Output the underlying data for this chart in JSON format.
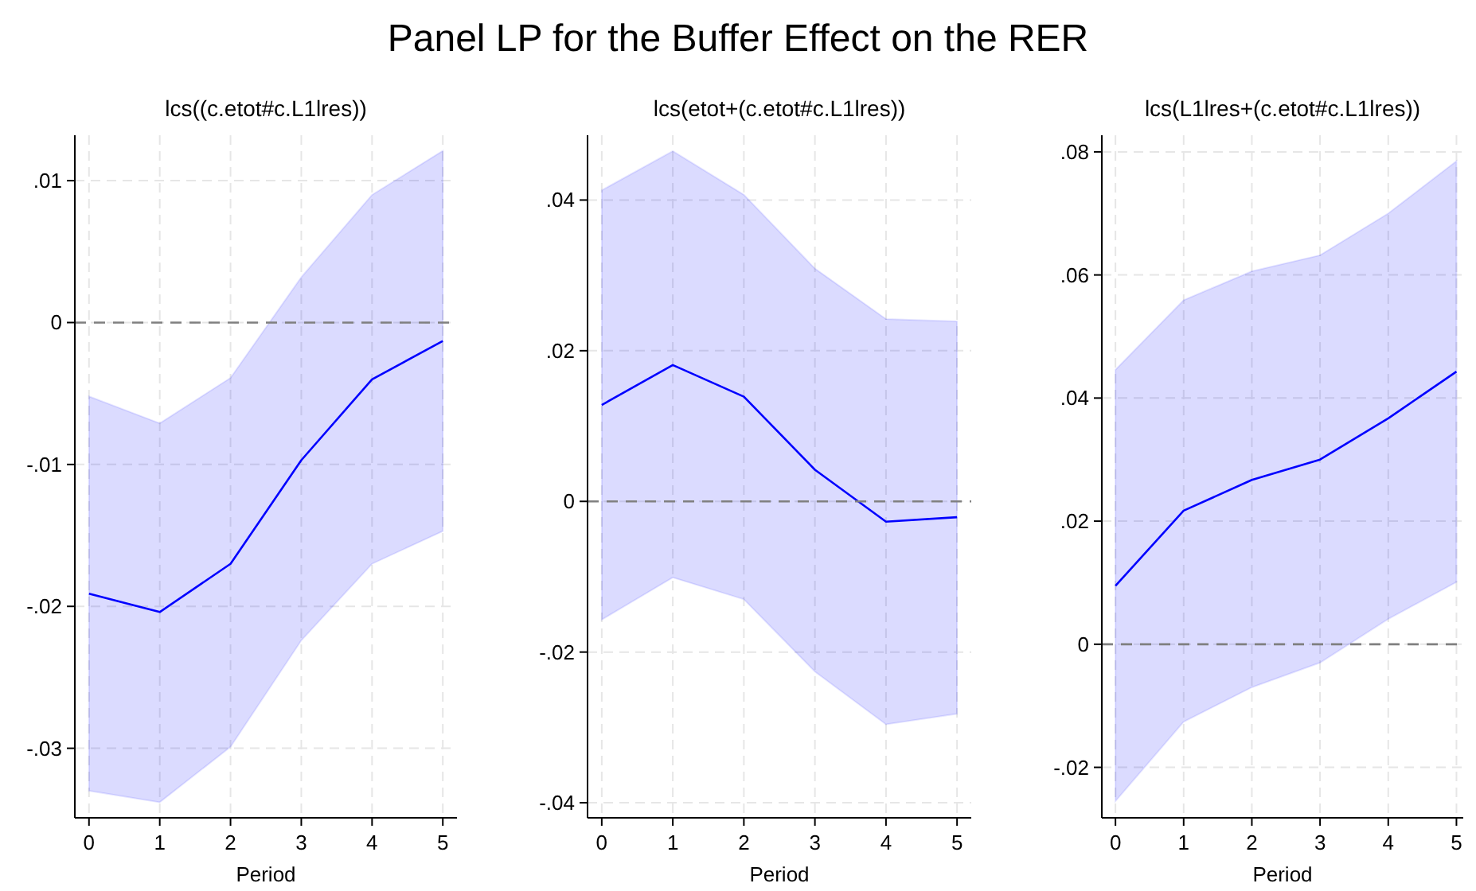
{
  "chart_data": [
    {
      "type": "other",
      "title": "Panel LP for the Buffer Effect on the RER"
    },
    {
      "type": "line",
      "title": "lcs((c.etot#c.L1lres))",
      "xlabel": "Period",
      "x": [
        0,
        1,
        2,
        3,
        4,
        5
      ],
      "xlim": [
        -0.2,
        5.2
      ],
      "xticks": [
        0,
        1,
        2,
        3,
        4,
        5
      ],
      "ylim": [
        -0.0349,
        0.0132
      ],
      "yticks": [
        {
          "value": -0.03,
          "label": "-.03"
        },
        {
          "value": -0.02,
          "label": "-.02"
        },
        {
          "value": -0.01,
          "label": "-.01"
        },
        {
          "value": 0,
          "label": "0"
        },
        {
          "value": 0.01,
          "label": ".01"
        }
      ],
      "grid": true,
      "marker": "none",
      "line_style": "solid",
      "ref_lines": [
        {
          "axis": "y",
          "value": 0,
          "color": "#808080",
          "line_style": "dashed"
        }
      ],
      "series": [
        {
          "color": "#0000ff",
          "values": [
            -0.0191,
            -0.0204,
            -0.017,
            -0.0097,
            -0.004,
            -0.0013
          ],
          "lower": [
            -0.033,
            -0.0338,
            -0.0299,
            -0.0224,
            -0.017,
            -0.0147
          ],
          "upper": [
            -0.0052,
            -0.0071,
            -0.0039,
            0.0032,
            0.009,
            0.0121
          ]
        }
      ]
    },
    {
      "type": "line",
      "title": "lcs(etot+(c.etot#c.L1lres))",
      "xlabel": "Period",
      "x": [
        0,
        1,
        2,
        3,
        4,
        5
      ],
      "xlim": [
        -0.2,
        5.2
      ],
      "xticks": [
        0,
        1,
        2,
        3,
        4,
        5
      ],
      "ylim": [
        -0.042,
        0.0486
      ],
      "yticks": [
        {
          "value": -0.04,
          "label": "-.04"
        },
        {
          "value": -0.02,
          "label": "-.02"
        },
        {
          "value": 0,
          "label": "0"
        },
        {
          "value": 0.02,
          "label": ".02"
        },
        {
          "value": 0.04,
          "label": ".04"
        }
      ],
      "grid": true,
      "marker": "none",
      "line_style": "solid",
      "ref_lines": [
        {
          "axis": "y",
          "value": 0,
          "color": "#808080",
          "line_style": "dashed"
        }
      ],
      "series": [
        {
          "color": "#0000ff",
          "values": [
            0.0128,
            0.0181,
            0.0139,
            0.0042,
            -0.0027,
            -0.0021
          ],
          "lower": [
            -0.0157,
            -0.0101,
            -0.013,
            -0.0226,
            -0.0296,
            -0.0282
          ],
          "upper": [
            0.0413,
            0.0465,
            0.0407,
            0.0309,
            0.0242,
            0.0239
          ]
        }
      ]
    },
    {
      "type": "line",
      "title": "lcs(L1lres+(c.etot#c.L1lres))",
      "xlabel": "Period",
      "x": [
        0,
        1,
        2,
        3,
        4,
        5
      ],
      "xlim": [
        -0.2,
        5.1
      ],
      "xticks": [
        0,
        1,
        2,
        3,
        4,
        5
      ],
      "ylim": [
        -0.0282,
        0.0827
      ],
      "yticks": [
        {
          "value": -0.02,
          "label": "-.02"
        },
        {
          "value": 0,
          "label": "0"
        },
        {
          "value": 0.02,
          "label": ".02"
        },
        {
          "value": 0.04,
          "label": ".04"
        },
        {
          "value": 0.06,
          "label": ".06"
        },
        {
          "value": 0.08,
          "label": ".08"
        }
      ],
      "grid": true,
      "marker": "none",
      "line_style": "solid",
      "ref_lines": [
        {
          "axis": "y",
          "value": 0,
          "color": "#808080",
          "line_style": "dashed"
        }
      ],
      "series": [
        {
          "color": "#0000ff",
          "values": [
            0.0095,
            0.0217,
            0.0267,
            0.03,
            0.0367,
            0.0443
          ],
          "lower": [
            -0.0255,
            -0.0126,
            -0.007,
            -0.003,
            0.0041,
            0.0101
          ],
          "upper": [
            0.0446,
            0.0559,
            0.0606,
            0.0632,
            0.07,
            0.0785
          ]
        }
      ]
    }
  ]
}
